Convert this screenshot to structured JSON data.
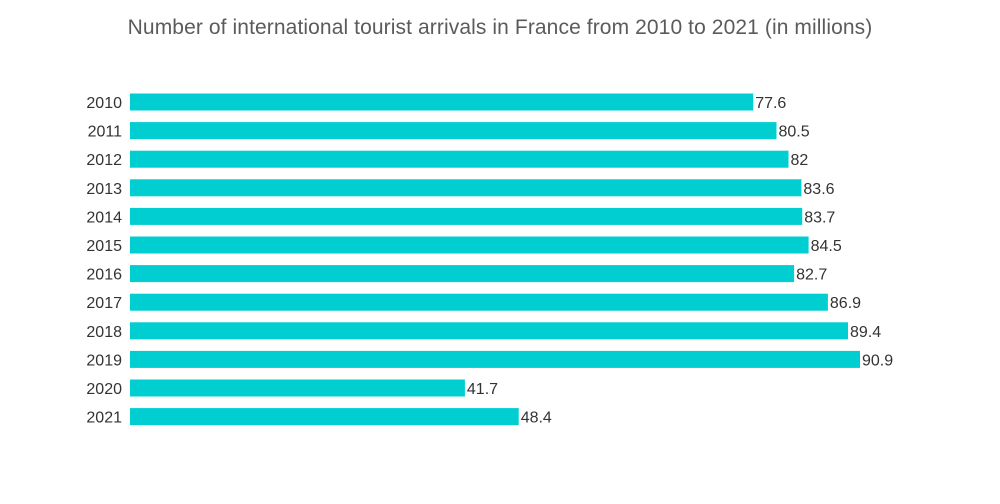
{
  "chart_data": {
    "type": "bar",
    "orientation": "horizontal",
    "title": "Number of international tourist arrivals in France from 2010 to 2021 (in millions)",
    "xlabel": "",
    "ylabel": "",
    "categories": [
      "2010",
      "2011",
      "2012",
      "2013",
      "2014",
      "2015",
      "2016",
      "2017",
      "2018",
      "2019",
      "2020",
      "2021"
    ],
    "values": [
      77.6,
      80.5,
      82,
      83.6,
      83.7,
      84.5,
      82.7,
      86.9,
      89.4,
      90.9,
      41.7,
      48.4
    ],
    "value_labels": [
      "77.6",
      "80.5",
      "82",
      "83.6",
      "83.7",
      "84.5",
      "82.7",
      "86.9",
      "89.4",
      "90.9",
      "41.7",
      "48.4"
    ],
    "xlim": [
      0,
      90.9
    ],
    "grid": false,
    "legend": "none",
    "bar_color": "#00ced1"
  }
}
